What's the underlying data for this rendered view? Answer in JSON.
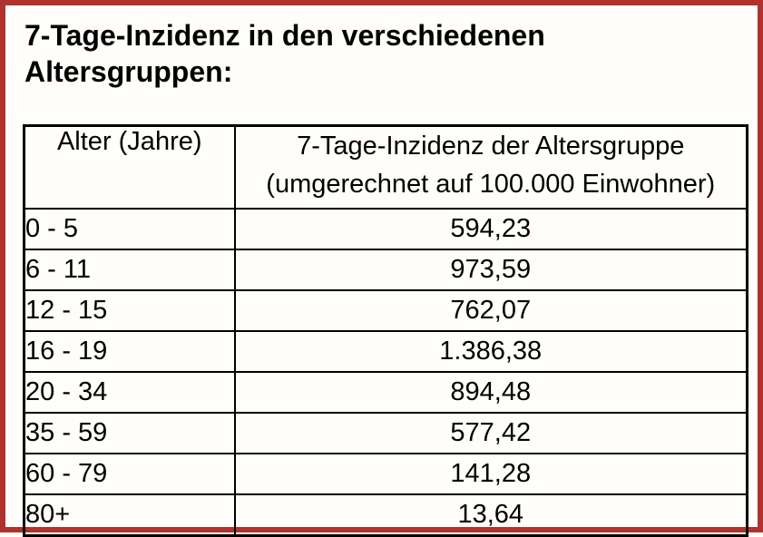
{
  "title": "7-Tage-Inzidenz in den verschiedenen Altersgruppen:",
  "table": {
    "headers": {
      "age": "Alter (Jahre)",
      "value_line1": "7-Tage-Inzidenz der Altersgruppe",
      "value_line2": "(umgerechnet auf 100.000 Einwohner)"
    },
    "rows": [
      {
        "age": "0 - 5",
        "value": "594,23"
      },
      {
        "age": "6 - 11",
        "value": "973,59"
      },
      {
        "age": "12 - 15",
        "value": "762,07"
      },
      {
        "age": "16 - 19",
        "value": "1.386,38"
      },
      {
        "age": "20 - 34",
        "value": "894,48"
      },
      {
        "age": "35 - 59",
        "value": "577,42"
      },
      {
        "age": "60 - 79",
        "value": "141,28"
      },
      {
        "age": "80+",
        "value": "13,64"
      }
    ]
  },
  "colors": {
    "frame": "#b0322f",
    "table_border": "#000000",
    "text": "#000000",
    "background": "#fffefa"
  },
  "chart_data": {
    "type": "table",
    "title": "7-Tage-Inzidenz in den verschiedenen Altersgruppen",
    "categories": [
      "0 - 5",
      "6 - 11",
      "12 - 15",
      "16 - 19",
      "20 - 34",
      "35 - 59",
      "60 - 79",
      "80+"
    ],
    "values": [
      594.23,
      973.59,
      762.07,
      1386.38,
      894.48,
      577.42,
      141.28,
      13.64
    ],
    "xlabel": "Alter (Jahre)",
    "ylabel": "7-Tage-Inzidenz der Altersgruppe (umgerechnet auf 100.000 Einwohner)"
  }
}
